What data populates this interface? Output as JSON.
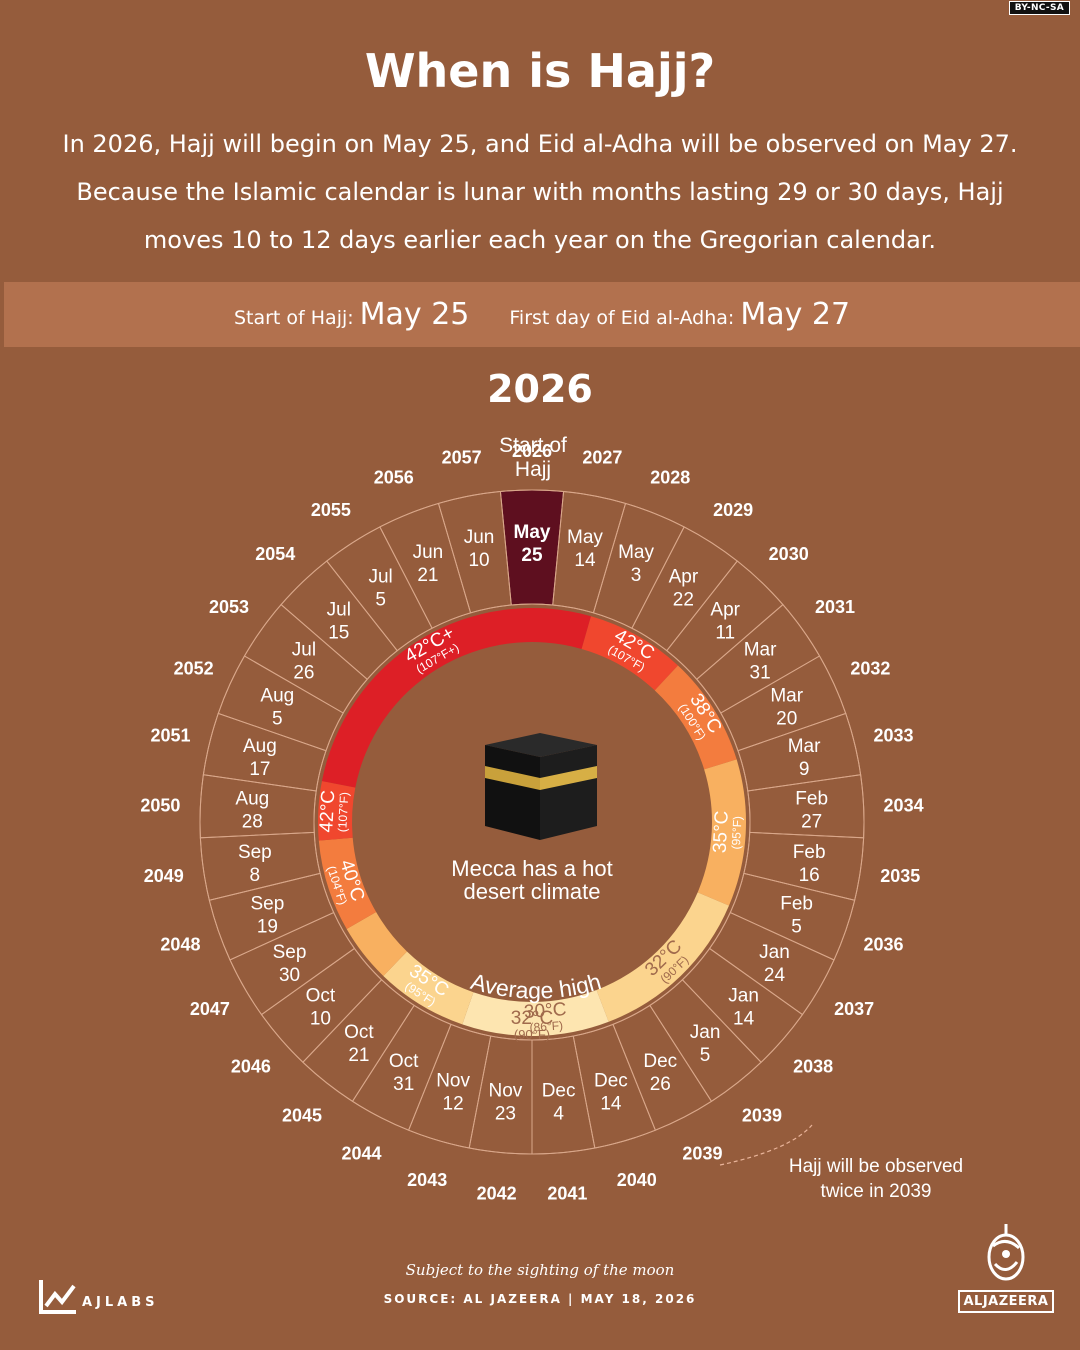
{
  "badge": "BY-NC-SA",
  "title": "When is Hajj?",
  "lede": "In 2026, Hajj will begin on May 25, and Eid al-Adha will be observed on May 27. Because the Islamic calendar is lunar with months lasting 29 or 30 days, Hajj moves 10 to 12 days earlier each year on the Gregorian calendar.",
  "band": {
    "start_label": "Start of Hajj:",
    "start_value": "May 25",
    "eid_label": "First day of Eid al-Adha:",
    "eid_value": "May 27"
  },
  "year_heading": "2026",
  "wheel": {
    "top_label_line1": "Start of",
    "top_label_line2": "Hajj",
    "highlight_color": "#5e0f1f",
    "segments": [
      {
        "year": "2026",
        "date1": "May",
        "date2": "25"
      },
      {
        "year": "2027",
        "date1": "May",
        "date2": "14"
      },
      {
        "year": "2028",
        "date1": "May",
        "date2": "3"
      },
      {
        "year": "2029",
        "date1": "Apr",
        "date2": "22"
      },
      {
        "year": "2030",
        "date1": "Apr",
        "date2": "11"
      },
      {
        "year": "2031",
        "date1": "Mar",
        "date2": "31"
      },
      {
        "year": "2032",
        "date1": "Mar",
        "date2": "20"
      },
      {
        "year": "2033",
        "date1": "Mar",
        "date2": "9"
      },
      {
        "year": "2034",
        "date1": "Feb",
        "date2": "27"
      },
      {
        "year": "2035",
        "date1": "Feb",
        "date2": "16"
      },
      {
        "year": "2036",
        "date1": "Feb",
        "date2": "5"
      },
      {
        "year": "2037",
        "date1": "Jan",
        "date2": "24"
      },
      {
        "year": "2038",
        "date1": "Jan",
        "date2": "14"
      },
      {
        "year": "2039",
        "date1": "Jan",
        "date2": "5"
      },
      {
        "year": "2039",
        "date1": "Dec",
        "date2": "26"
      },
      {
        "year": "2040",
        "date1": "Dec",
        "date2": "14"
      },
      {
        "year": "2041",
        "date1": "Dec",
        "date2": "4"
      },
      {
        "year": "2042",
        "date1": "Nov",
        "date2": "23"
      },
      {
        "year": "2043",
        "date1": "Nov",
        "date2": "12"
      },
      {
        "year": "2044",
        "date1": "Oct",
        "date2": "31"
      },
      {
        "year": "2045",
        "date1": "Oct",
        "date2": "21"
      },
      {
        "year": "2046",
        "date1": "Oct",
        "date2": "10"
      },
      {
        "year": "2047",
        "date1": "Sep",
        "date2": "30"
      },
      {
        "year": "2048",
        "date1": "Sep",
        "date2": "19"
      },
      {
        "year": "2049",
        "date1": "Sep",
        "date2": "8"
      },
      {
        "year": "2050",
        "date1": "Aug",
        "date2": "28"
      },
      {
        "year": "2051",
        "date1": "Aug",
        "date2": "17"
      },
      {
        "year": "2052",
        "date1": "Aug",
        "date2": "5"
      },
      {
        "year": "2053",
        "date1": "Jul",
        "date2": "26"
      },
      {
        "year": "2054",
        "date1": "Jul",
        "date2": "15"
      },
      {
        "year": "2055",
        "date1": "Jul",
        "date2": "5"
      },
      {
        "year": "2056",
        "date1": "Jun",
        "date2": "21"
      },
      {
        "year": "2057",
        "date1": "Jun",
        "date2": "10"
      }
    ],
    "temperature_bands": [
      {
        "celsius": "42°C+",
        "fahrenheit": "(107°F+)",
        "color": "#dd1f26"
      },
      {
        "celsius": "42°C",
        "fahrenheit": "(107°F)",
        "color": "#f0472e"
      },
      {
        "celsius": "38°C",
        "fahrenheit": "(100°F)",
        "color": "#f37c3e"
      },
      {
        "celsius": "35°C",
        "fahrenheit": "(95°F)",
        "color": "#f8b060"
      },
      {
        "celsius": "32°C",
        "fahrenheit": "(90°F)",
        "color": "#fbd48e"
      },
      {
        "celsius": "30°C",
        "fahrenheit": "(86°F)",
        "color": "#fde5b0"
      },
      {
        "celsius": "32°C",
        "fahrenheit": "(90°F)",
        "color": "#fbd48e"
      },
      {
        "celsius": "35°C",
        "fahrenheit": "(95°F)",
        "color": "#f8b060"
      },
      {
        "celsius": "40°C",
        "fahrenheit": "(104°F)",
        "color": "#f37c3e"
      },
      {
        "celsius": "42°C",
        "fahrenheit": "(107°F)",
        "color": "#f0472e"
      }
    ],
    "avg_label": "Average high",
    "center_line1": "Mecca has a hot",
    "center_line2": "desert climate",
    "annotation_line1": "Hajj will be observed",
    "annotation_line2": "twice in 2039"
  },
  "footer": {
    "note": "Subject to the sighting of the moon",
    "source": "SOURCE:  AL JAZEERA    |  MAY 18, 2026",
    "ajlabs": "AJLABS",
    "aljazeera": "ALJAZEERA"
  }
}
